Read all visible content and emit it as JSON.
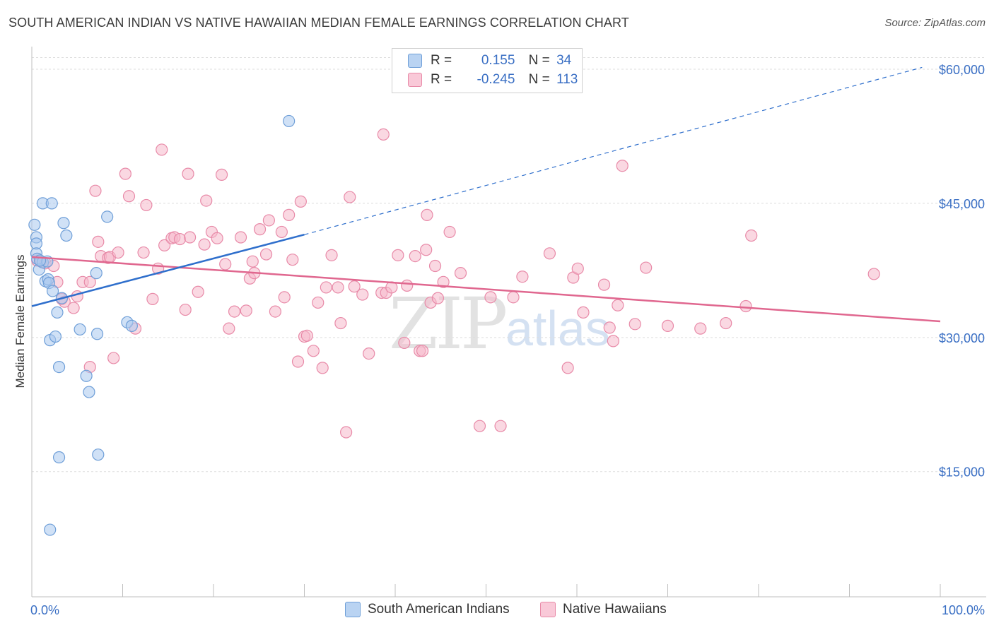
{
  "title": "SOUTH AMERICAN INDIAN VS NATIVE HAWAIIAN MEDIAN FEMALE EARNINGS CORRELATION CHART",
  "source": "Source: ZipAtlas.com",
  "watermark": {
    "zip": "ZIP",
    "atlas": "atlas"
  },
  "legend": {
    "rows": [
      {
        "r_label": "R =",
        "r_value": "0.155",
        "n_label": "N =",
        "n_value": "34"
      },
      {
        "r_label": "R =",
        "r_value": "-0.245",
        "n_label": "N =",
        "n_value": "113"
      }
    ]
  },
  "bottom_legend": [
    "South American Indians",
    "Native Hawaiians"
  ],
  "colors": {
    "blue_fill": "#a9c8ee",
    "blue_stroke": "#6f9fd8",
    "blue_line": "#2f6fcc",
    "pink_fill": "#f5b8cb",
    "pink_stroke": "#e88aa8",
    "pink_line": "#e0678f",
    "axis_label": "#3a6fc4",
    "grid": "#dddddd"
  },
  "chart_data": {
    "type": "scatter",
    "title": "SOUTH AMERICAN INDIAN VS NATIVE HAWAIIAN MEDIAN FEMALE EARNINGS CORRELATION CHART",
    "xlabel": "",
    "ylabel": "Median Female Earnings",
    "xlim": [
      0,
      100
    ],
    "ylim": [
      1000,
      63000
    ],
    "x_tick_labels": [
      "0.0%",
      "100.0%"
    ],
    "y_ticks": [
      15000,
      30000,
      45000,
      60000
    ],
    "y_tick_labels": [
      "$15,000",
      "$30,000",
      "$45,000",
      "$60,000"
    ],
    "series": [
      {
        "name": "South American Indians",
        "R": 0.155,
        "N": 34,
        "trend": {
          "x0": 0,
          "y0": 33500,
          "x1": 30,
          "y1": 41500,
          "extend_to_x": 98,
          "extend_to_y": 60200
        },
        "points": [
          [
            0.3,
            42600
          ],
          [
            0.5,
            41200
          ],
          [
            0.5,
            40500
          ],
          [
            0.5,
            39400
          ],
          [
            0.6,
            38800
          ],
          [
            0.8,
            37600
          ],
          [
            1.2,
            38400
          ],
          [
            1.2,
            45000
          ],
          [
            1.5,
            36300
          ],
          [
            1.7,
            38500
          ],
          [
            1.8,
            36500
          ],
          [
            1.9,
            36100
          ],
          [
            2.0,
            29700
          ],
          [
            2.2,
            45000
          ],
          [
            2.3,
            35200
          ],
          [
            2.6,
            30100
          ],
          [
            2.8,
            32800
          ],
          [
            3.0,
            26700
          ],
          [
            3.0,
            16600
          ],
          [
            3.3,
            34400
          ],
          [
            3.5,
            42800
          ],
          [
            3.8,
            41400
          ],
          [
            5.3,
            30900
          ],
          [
            6.0,
            25700
          ],
          [
            6.3,
            23900
          ],
          [
            7.1,
            37200
          ],
          [
            7.2,
            30400
          ],
          [
            7.3,
            16900
          ],
          [
            8.3,
            43500
          ],
          [
            10.5,
            31700
          ],
          [
            11.0,
            31300
          ],
          [
            28.3,
            54200
          ],
          [
            2.0,
            8500
          ],
          [
            0.9,
            38600
          ]
        ]
      },
      {
        "name": "Native Hawaiians",
        "R": -0.245,
        "N": 113,
        "trend": {
          "x0": 0,
          "y0": 39000,
          "x1": 100,
          "y1": 31800
        },
        "points": [
          [
            0.6,
            38600
          ],
          [
            1.0,
            38500
          ],
          [
            1.5,
            38300
          ],
          [
            2.4,
            38000
          ],
          [
            2.8,
            36200
          ],
          [
            3.3,
            34300
          ],
          [
            3.6,
            34000
          ],
          [
            4.6,
            33300
          ],
          [
            5.0,
            34600
          ],
          [
            5.6,
            36200
          ],
          [
            6.4,
            26700
          ],
          [
            6.4,
            36200
          ],
          [
            7.0,
            46400
          ],
          [
            7.3,
            40700
          ],
          [
            7.6,
            39100
          ],
          [
            8.4,
            38900
          ],
          [
            8.6,
            39000
          ],
          [
            9.0,
            27700
          ],
          [
            9.5,
            39500
          ],
          [
            10.3,
            48300
          ],
          [
            10.7,
            45800
          ],
          [
            11.4,
            31000
          ],
          [
            12.3,
            39500
          ],
          [
            12.6,
            44800
          ],
          [
            13.3,
            34300
          ],
          [
            13.9,
            37700
          ],
          [
            14.3,
            51000
          ],
          [
            14.6,
            40300
          ],
          [
            15.4,
            41100
          ],
          [
            15.7,
            41200
          ],
          [
            16.3,
            41000
          ],
          [
            16.9,
            33100
          ],
          [
            17.2,
            48300
          ],
          [
            17.4,
            41200
          ],
          [
            18.3,
            35100
          ],
          [
            19.0,
            40400
          ],
          [
            19.2,
            45300
          ],
          [
            19.8,
            41800
          ],
          [
            20.4,
            41100
          ],
          [
            20.9,
            48200
          ],
          [
            21.3,
            38200
          ],
          [
            21.7,
            31000
          ],
          [
            22.3,
            32900
          ],
          [
            23.0,
            41200
          ],
          [
            23.6,
            33000
          ],
          [
            24.0,
            36600
          ],
          [
            24.3,
            38500
          ],
          [
            24.5,
            37200
          ],
          [
            25.1,
            42100
          ],
          [
            25.8,
            39300
          ],
          [
            26.1,
            43100
          ],
          [
            26.8,
            32900
          ],
          [
            27.5,
            41800
          ],
          [
            27.8,
            34500
          ],
          [
            28.3,
            43700
          ],
          [
            28.7,
            38700
          ],
          [
            29.3,
            27300
          ],
          [
            29.6,
            45200
          ],
          [
            30.0,
            30100
          ],
          [
            30.3,
            30200
          ],
          [
            31.0,
            28500
          ],
          [
            31.5,
            33900
          ],
          [
            32.0,
            26600
          ],
          [
            32.4,
            35600
          ],
          [
            33.0,
            39200
          ],
          [
            33.7,
            35600
          ],
          [
            34.0,
            31600
          ],
          [
            34.6,
            19400
          ],
          [
            35.0,
            45700
          ],
          [
            35.5,
            35700
          ],
          [
            36.4,
            34800
          ],
          [
            37.1,
            28200
          ],
          [
            38.5,
            35000
          ],
          [
            38.7,
            52700
          ],
          [
            39.0,
            35000
          ],
          [
            39.6,
            35600
          ],
          [
            40.3,
            39200
          ],
          [
            41.0,
            29400
          ],
          [
            41.3,
            35800
          ],
          [
            42.2,
            39100
          ],
          [
            42.7,
            28500
          ],
          [
            43.0,
            28500
          ],
          [
            43.4,
            39800
          ],
          [
            43.5,
            43700
          ],
          [
            43.9,
            33900
          ],
          [
            44.4,
            38000
          ],
          [
            44.7,
            34400
          ],
          [
            45.3,
            36200
          ],
          [
            46.0,
            41800
          ],
          [
            47.2,
            37200
          ],
          [
            49.3,
            20100
          ],
          [
            50.5,
            34500
          ],
          [
            51.6,
            20100
          ],
          [
            53.0,
            34500
          ],
          [
            54.0,
            36800
          ],
          [
            57.0,
            39400
          ],
          [
            59.0,
            26600
          ],
          [
            59.6,
            36700
          ],
          [
            60.1,
            37700
          ],
          [
            60.7,
            32800
          ],
          [
            63.0,
            35900
          ],
          [
            63.6,
            31100
          ],
          [
            64.0,
            29600
          ],
          [
            64.5,
            33600
          ],
          [
            65.0,
            49200
          ],
          [
            66.4,
            31500
          ],
          [
            67.6,
            37800
          ],
          [
            70.0,
            31300
          ],
          [
            73.6,
            31000
          ],
          [
            76.4,
            31600
          ],
          [
            78.6,
            33500
          ],
          [
            79.2,
            41400
          ],
          [
            92.7,
            37100
          ]
        ]
      }
    ]
  }
}
